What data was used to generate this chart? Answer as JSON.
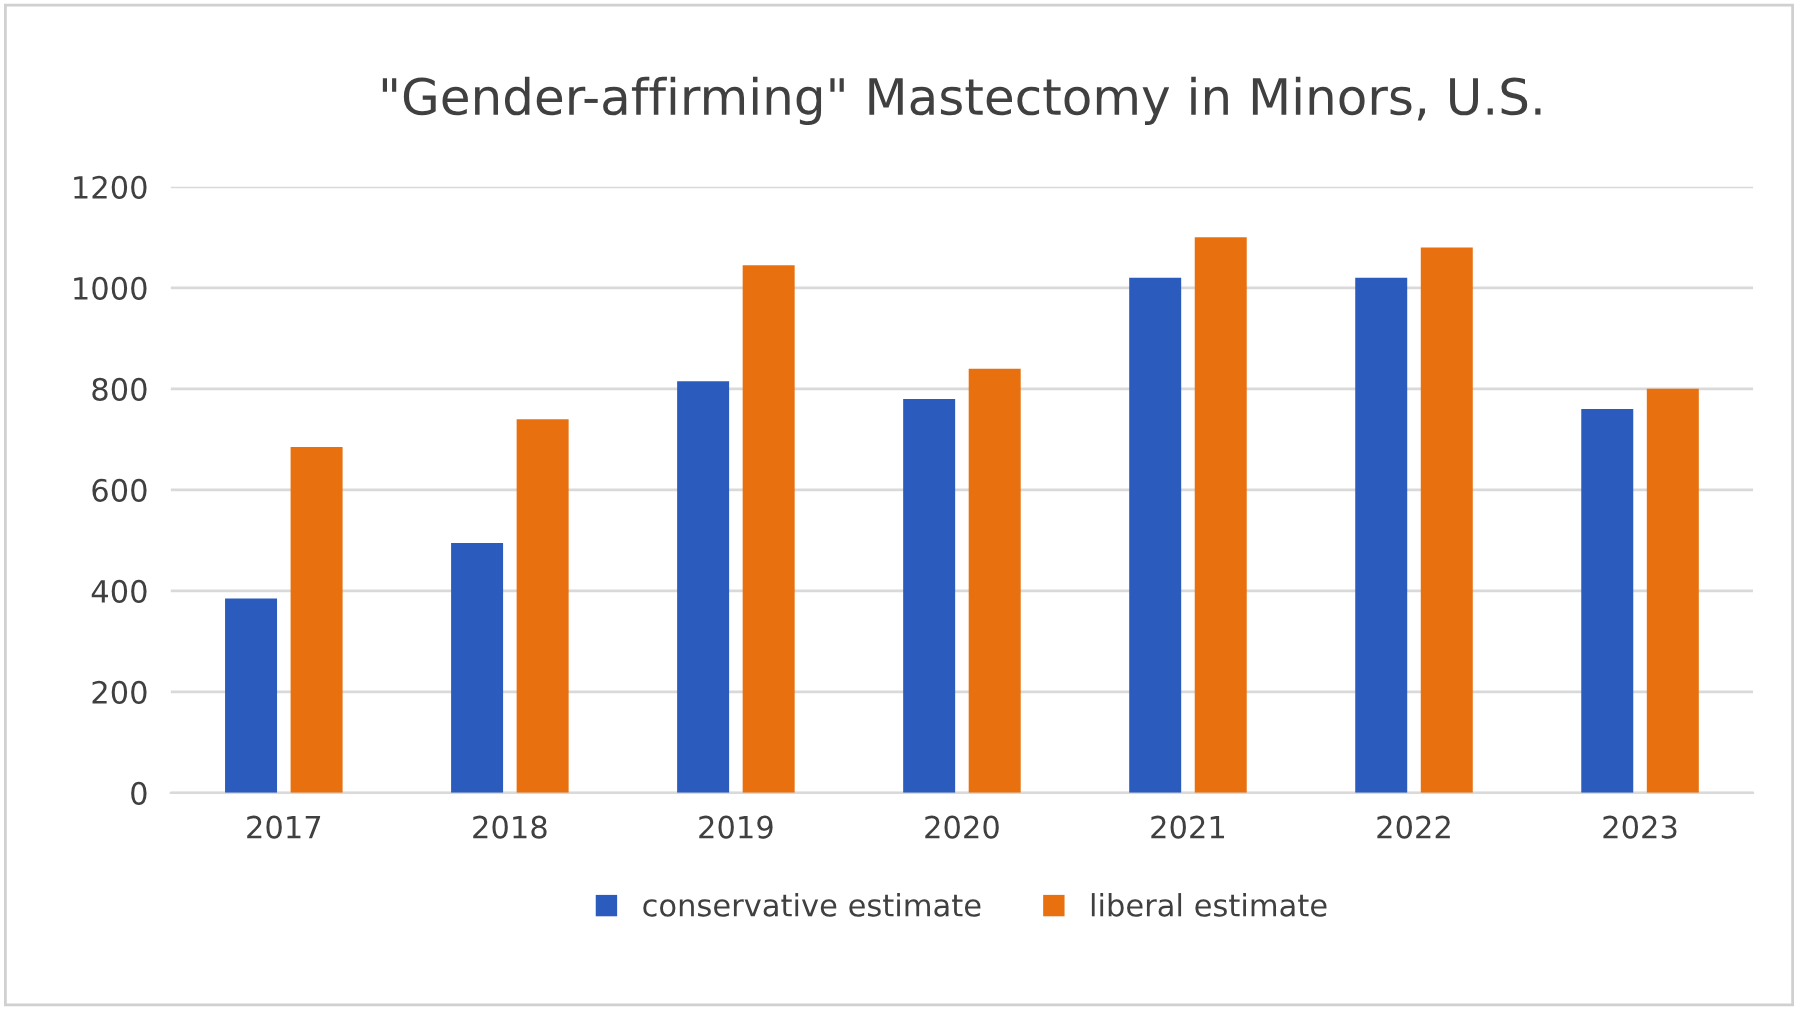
{
  "chart_data": {
    "type": "bar",
    "title": "\"Gender-affirming\" Mastectomy in Minors, U.S.",
    "categories": [
      "2017",
      "2018",
      "2019",
      "2020",
      "2021",
      "2022",
      "2023"
    ],
    "series": [
      {
        "name": "conservative estimate",
        "color": "#2a5bbd",
        "values": [
          385,
          495,
          815,
          780,
          1020,
          1020,
          760
        ]
      },
      {
        "name": "liberal estimate",
        "color": "#e8700f",
        "values": [
          685,
          740,
          1045,
          840,
          1100,
          1080,
          800
        ]
      }
    ],
    "ylim": [
      0,
      1200
    ],
    "yticks": [
      0,
      200,
      400,
      600,
      800,
      1000,
      1200
    ],
    "grid": "y",
    "legend": "bottom"
  }
}
